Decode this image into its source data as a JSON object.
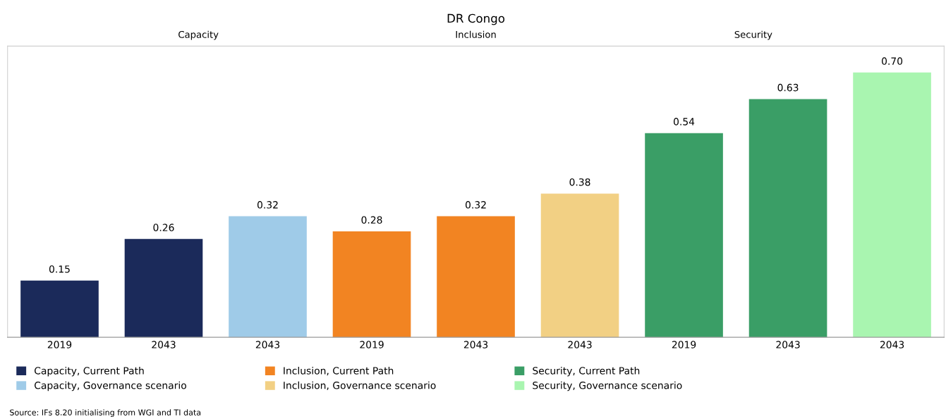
{
  "chart_data": {
    "type": "bar",
    "title": "DR Congo",
    "categories": [
      "2019",
      "2043",
      "2043",
      "2019",
      "2043",
      "2043",
      "2019",
      "2043",
      "2043"
    ],
    "series": [
      {
        "name": "Capacity, Current Path",
        "color": "#1b2a5a",
        "values": [
          0.15,
          0.26,
          null,
          null,
          null,
          null,
          null,
          null,
          null
        ],
        "value_labels": [
          "0.15",
          "0.26",
          null,
          null,
          null,
          null,
          null,
          null,
          null
        ]
      },
      {
        "name": "Capacity, Governance scenario",
        "color": "#9fcbe8",
        "values": [
          null,
          null,
          0.32,
          null,
          null,
          null,
          null,
          null,
          null
        ],
        "value_labels": [
          null,
          null,
          "0.32",
          null,
          null,
          null,
          null,
          null,
          null
        ]
      },
      {
        "name": "Inclusion, Current Path",
        "color": "#f28422",
        "values": [
          null,
          null,
          null,
          0.28,
          0.32,
          null,
          null,
          null,
          null
        ],
        "value_labels": [
          null,
          null,
          null,
          "0.28",
          "0.32",
          null,
          null,
          null,
          null
        ]
      },
      {
        "name": "Inclusion, Governance scenario",
        "color": "#f2d084",
        "values": [
          null,
          null,
          null,
          null,
          null,
          0.38,
          null,
          null,
          null
        ],
        "value_labels": [
          null,
          null,
          null,
          null,
          null,
          "0.38",
          null,
          null,
          null
        ]
      },
      {
        "name": "Security, Current Path",
        "color": "#3a9e66",
        "values": [
          null,
          null,
          null,
          null,
          null,
          null,
          0.54,
          0.63,
          null
        ],
        "value_labels": [
          null,
          null,
          null,
          null,
          null,
          null,
          "0.54",
          "0.63",
          null
        ]
      },
      {
        "name": "Security, Governance scenario",
        "color": "#a9f5b0",
        "values": [
          null,
          null,
          null,
          null,
          null,
          null,
          null,
          null,
          0.7
        ],
        "value_labels": [
          null,
          null,
          null,
          null,
          null,
          null,
          null,
          null,
          "0.70"
        ]
      }
    ],
    "legend": "bottom",
    "annotations": [
      "Capacity",
      "Inclusion",
      "Security",
      "Source: IFs 8.20 initialising from WGI and TI data"
    ]
  }
}
